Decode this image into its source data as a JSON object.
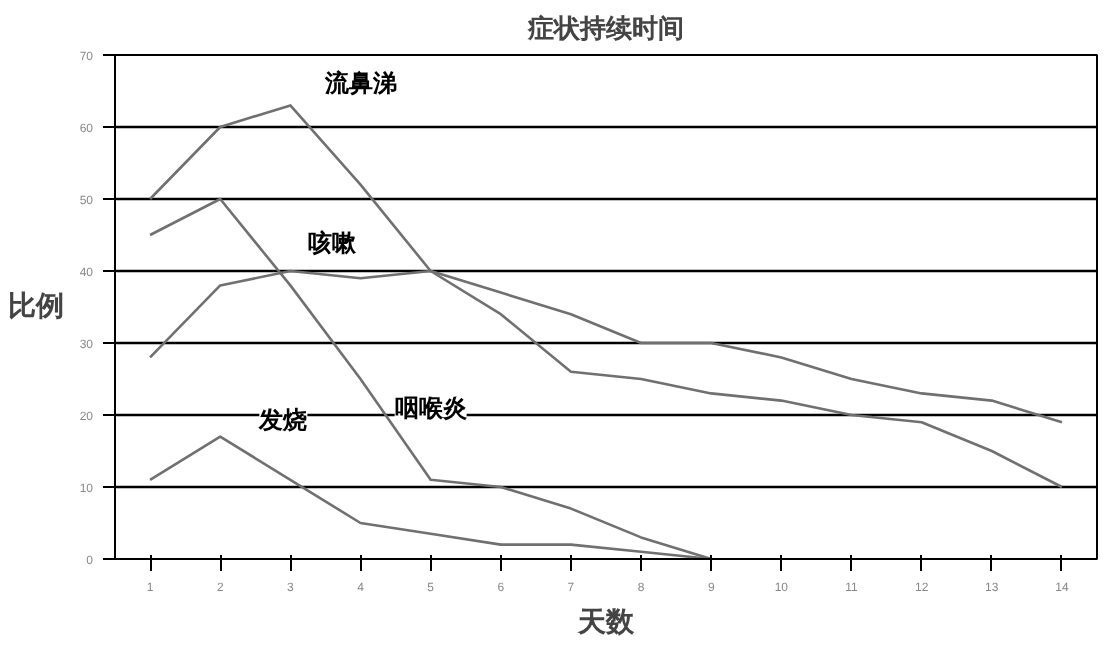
{
  "chart_data": {
    "type": "line",
    "title": "症状持续时间",
    "xlabel": "天数",
    "ylabel": "比例",
    "x": [
      1,
      2,
      3,
      4,
      5,
      6,
      7,
      8,
      9,
      10,
      11,
      12,
      13,
      14
    ],
    "series": [
      {
        "name": "流鼻涕",
        "color": "#707070",
        "values": [
          50,
          60,
          63,
          52,
          40,
          34,
          26,
          25,
          23,
          22,
          20,
          19,
          15,
          10
        ]
      },
      {
        "name": "咳嗽",
        "color": "#707070",
        "values": [
          28,
          38,
          40,
          39,
          40,
          37,
          34,
          30,
          30,
          28,
          25,
          23,
          22,
          19
        ]
      },
      {
        "name": "咽喉炎",
        "color": "#707070",
        "x": [
          1,
          2,
          3,
          4,
          5,
          6,
          7,
          8,
          9
        ],
        "values": [
          45,
          50,
          38,
          25,
          11,
          10,
          7,
          3,
          0
        ]
      },
      {
        "name": "发烧",
        "color": "#707070",
        "x": [
          1,
          2,
          3,
          4,
          5,
          6,
          7,
          8,
          9
        ],
        "values": [
          11,
          17,
          11,
          5,
          3.5,
          2,
          2,
          1,
          0
        ]
      }
    ],
    "xlim": [
      0.5,
      14.5
    ],
    "xticks": [
      1,
      2,
      3,
      4,
      5,
      6,
      7,
      8,
      9,
      10,
      11,
      12,
      13,
      14
    ],
    "ylim": [
      0,
      70
    ],
    "yticks": [
      0,
      10,
      20,
      30,
      40,
      50,
      60,
      70
    ],
    "grid": "y",
    "marker": "none",
    "line_style": "solid"
  }
}
